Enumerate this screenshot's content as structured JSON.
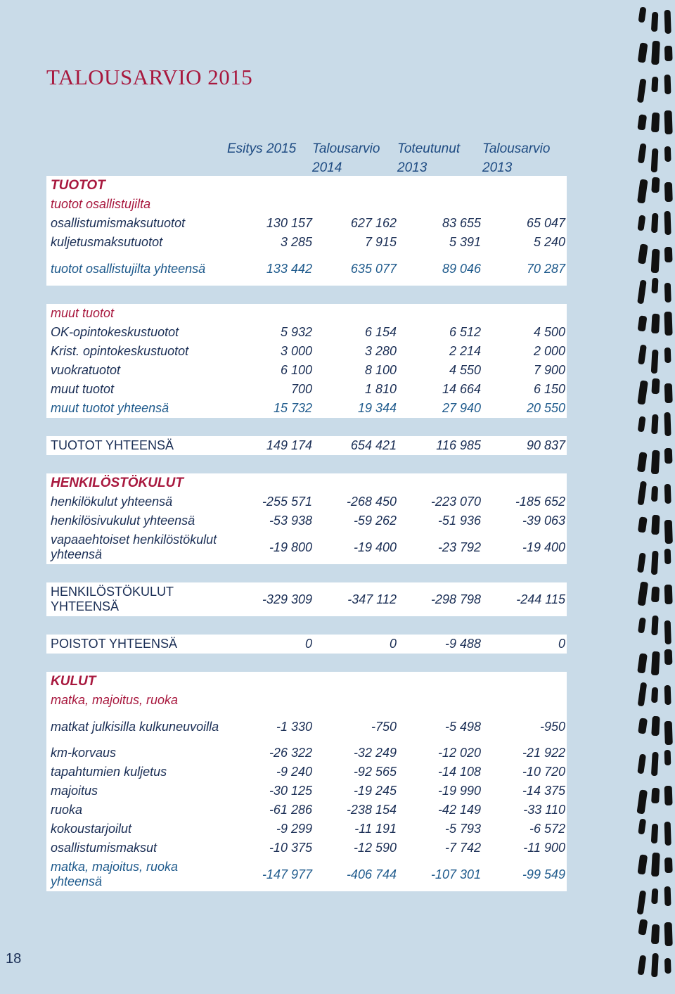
{
  "title": "TALOUSARVIO 2015",
  "page_number": "18",
  "columns": [
    "Esitys 2015",
    "Talousarvio 2014",
    "Toteutunut 2013",
    "Talousarvio 2013"
  ],
  "groups": [
    {
      "rows": [
        {
          "kind": "section",
          "label": "TUOTOT"
        },
        {
          "kind": "subheading",
          "label": "tuotot osallistujilta"
        },
        {
          "kind": "item",
          "label": "osallistumismaksutuotot",
          "values": [
            "130 157",
            "627 162",
            "83 655",
            "65 047"
          ]
        },
        {
          "kind": "item",
          "label": "kuljetusmaksutuotot",
          "values": [
            "3 285",
            "7 915",
            "5 391",
            "5 240"
          ]
        },
        {
          "kind": "subtotal",
          "label": "tuotot osallistujilta yhteensä",
          "values": [
            "133 442",
            "635 077",
            "89 046",
            "70 287"
          ]
        }
      ]
    },
    {
      "rows": [
        {
          "kind": "subheading",
          "label": "muut tuotot"
        },
        {
          "kind": "item",
          "label": "OK-opintokeskustuotot",
          "values": [
            "5 932",
            "6 154",
            "6 512",
            "4 500"
          ]
        },
        {
          "kind": "item",
          "label": "Krist. opintokeskustuotot",
          "values": [
            "3 000",
            "3 280",
            "2 214",
            "2 000"
          ]
        },
        {
          "kind": "item",
          "label": "vuokratuotot",
          "values": [
            "6 100",
            "8 100",
            "4 550",
            "7 900"
          ]
        },
        {
          "kind": "item",
          "label": "muut tuotot",
          "values": [
            "700",
            "1 810",
            "14 664",
            "6 150"
          ]
        },
        {
          "kind": "subtotal",
          "label": "muut tuotot yhteensä",
          "values": [
            "15 732",
            "19 344",
            "27 940",
            "20 550"
          ]
        }
      ]
    },
    {
      "rows": [
        {
          "kind": "total",
          "label": "TUOTOT YHTEENSÄ",
          "values": [
            "149 174",
            "654 421",
            "116 985",
            "90 837"
          ]
        }
      ]
    },
    {
      "rows": [
        {
          "kind": "section",
          "label": "HENKILÖSTÖKULUT"
        },
        {
          "kind": "item",
          "label": "henkilökulut yhteensä",
          "values": [
            "-255 571",
            "-268 450",
            "-223 070",
            "-185 652"
          ]
        },
        {
          "kind": "item",
          "label": "henkilösivukulut yhteensä",
          "values": [
            "-53 938",
            "-59 262",
            "-51 936",
            "-39 063"
          ]
        },
        {
          "kind": "item",
          "label": "vapaaehtoiset henkilöstökulut yhteensä",
          "values": [
            "-19 800",
            "-19 400",
            "-23 792",
            "-19 400"
          ]
        }
      ]
    },
    {
      "rows": [
        {
          "kind": "total",
          "label": "HENKILÖSTÖKULUT YHTEENSÄ",
          "values": [
            "-329 309",
            "-347 112",
            "-298 798",
            "-244 115"
          ]
        }
      ]
    },
    {
      "rows": [
        {
          "kind": "total",
          "label": "POISTOT YHTEENSÄ",
          "values": [
            "0",
            "0",
            "-9 488",
            "0"
          ]
        }
      ]
    },
    {
      "rows": [
        {
          "kind": "section",
          "label": "KULUT"
        },
        {
          "kind": "subheading",
          "label": "matka, majoitus, ruoka"
        },
        {
          "kind": "item",
          "label": "matkat julkisilla kulkuneuvoilla",
          "values": [
            "-1 330",
            "-750",
            "-5 498",
            "-950"
          ]
        },
        {
          "kind": "item",
          "label": "km-korvaus",
          "values": [
            "-26 322",
            "-32 249",
            "-12 020",
            "-21 922"
          ]
        },
        {
          "kind": "item",
          "label": "tapahtumien kuljetus",
          "values": [
            "-9 240",
            "-92 565",
            "-14 108",
            "-10 720"
          ]
        },
        {
          "kind": "item",
          "label": "majoitus",
          "values": [
            "-30 125",
            "-19 245",
            "-19 990",
            "-14 375"
          ]
        },
        {
          "kind": "item",
          "label": "ruoka",
          "values": [
            "-61 286",
            "-238 154",
            "-42 149",
            "-33 110"
          ]
        },
        {
          "kind": "item",
          "label": "kokoustarjoilut",
          "values": [
            "-9 299",
            "-11 191",
            "-5 793",
            "-6 572"
          ]
        },
        {
          "kind": "item",
          "label": "osallistumismaksut",
          "values": [
            "-10 375",
            "-12 590",
            "-7 742",
            "-11 900"
          ]
        },
        {
          "kind": "subtotal",
          "label": "matka, majoitus, ruoka yhteensä",
          "values": [
            "-147 977",
            "-406 744",
            "-107 301",
            "-99 549"
          ]
        }
      ]
    }
  ]
}
